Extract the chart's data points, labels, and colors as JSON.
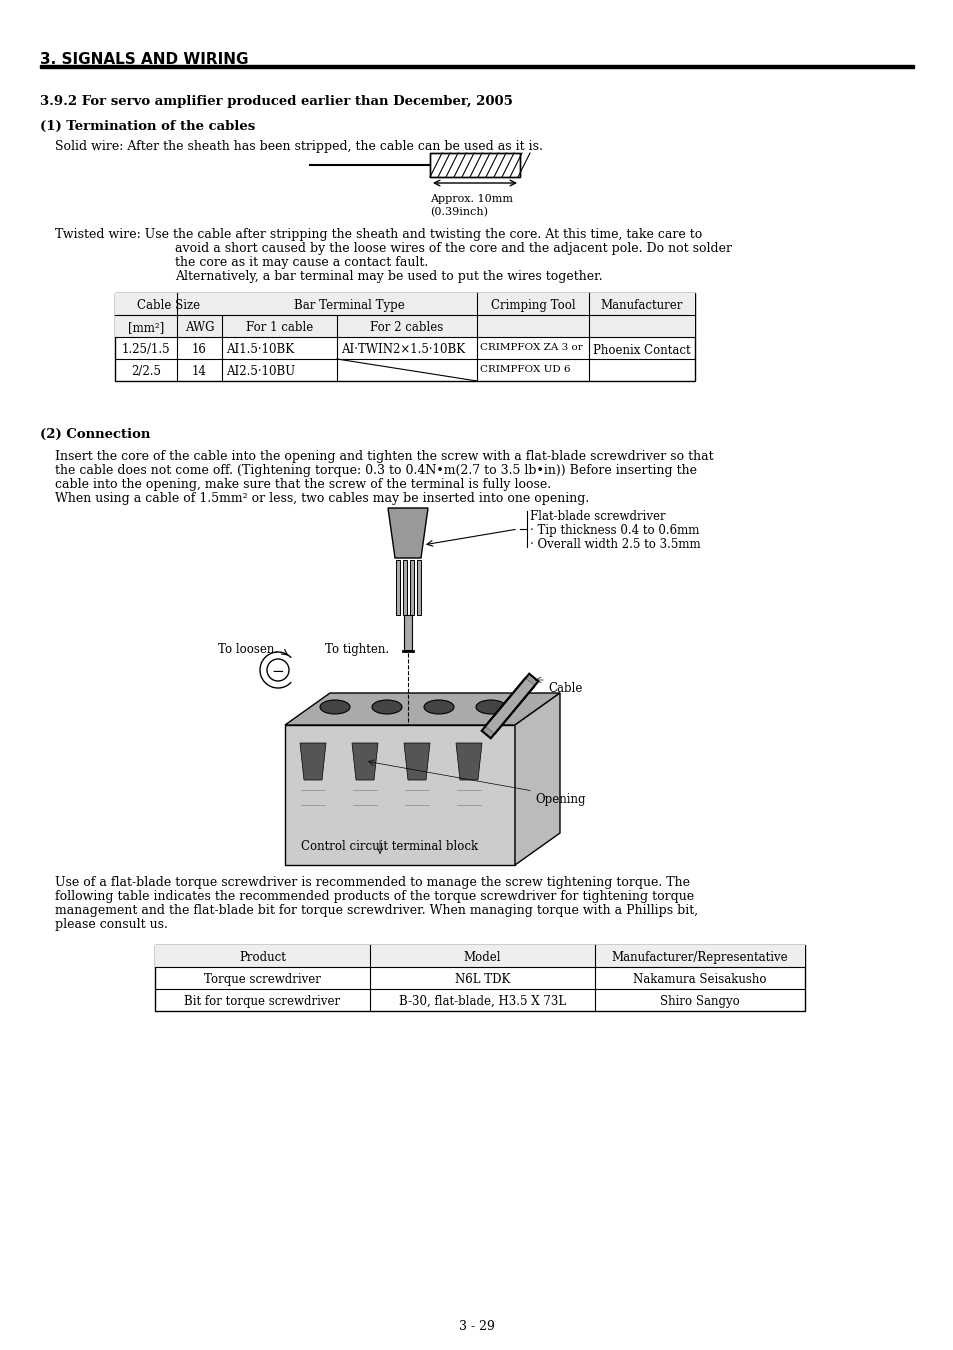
{
  "page_title": "3. SIGNALS AND WIRING",
  "section": "3.9.2 For servo amplifier produced earlier than December, 2005",
  "subsection1": "(1) Termination of the cables",
  "solid_wire_text": "Solid wire: After the sheath has been stripped, the cable can be used as it is.",
  "approx_label": "Approx. 10mm",
  "approx_label2": "(0.39inch)",
  "twisted_wire_text1": "Twisted wire: Use the cable after stripping the sheath and twisting the core. At this time, take care to",
  "twisted_wire_text2": "avoid a short caused by the loose wires of the core and the adjacent pole. Do not solder",
  "twisted_wire_text3": "the core as it may cause a contact fault.",
  "twisted_wire_text4": "Alternatively, a bar terminal may be used to put the wires together.",
  "table1_data": [
    [
      "1.25/1.5",
      "16",
      "AI1.5·10BK",
      "AI·TWIN2×1.5·10BK",
      "CRIMPFOX ZA 3 or",
      "Phoenix Contact"
    ],
    [
      "2/2.5",
      "14",
      "AI2.5·10BU",
      "",
      "CRIMPFOX UD 6",
      ""
    ]
  ],
  "subsection2": "(2) Connection",
  "connection_text1": "Insert the core of the cable into the opening and tighten the screw with a flat-blade screwdriver so that",
  "connection_text2": "the cable does not come off. (Tightening torque: 0.3 to 0.4N•m(2.7 to 3.5 lb•in)) Before inserting the",
  "connection_text3": "cable into the opening, make sure that the screw of the terminal is fully loose.",
  "connection_text4": "When using a cable of 1.5mm² or less, two cables may be inserted into one opening.",
  "flatblade_label": "Flat-blade screwdriver",
  "tip_label": "· Tip thickness 0.4 to 0.6mm",
  "overall_label": "· Overall width 2.5 to 3.5mm",
  "loosen_label": "To loosen.",
  "tighten_label": "To tighten.",
  "cable_label": "Cable",
  "opening_label": "Opening",
  "control_label": "Control circuit terminal block",
  "torque_text1": "Use of a flat-blade torque screwdriver is recommended to manage the screw tightening torque. The",
  "torque_text2": "following table indicates the recommended products of the torque screwdriver for tightening torque",
  "torque_text3": "management and the flat-blade bit for torque screwdriver. When managing torque with a Phillips bit,",
  "torque_text4": "please consult us.",
  "table2_headers": [
    "Product",
    "Model",
    "Manufacturer/Representative"
  ],
  "table2_data": [
    [
      "Torque screwdriver",
      "N6L TDK",
      "Nakamura Seisakusho"
    ],
    [
      "Bit for torque screwdriver",
      "B-30, flat-blade, H3.5 X 73L",
      "Shiro Sangyo"
    ]
  ],
  "page_number": "3 - 29",
  "bg_color": "#ffffff",
  "text_color": "#000000"
}
